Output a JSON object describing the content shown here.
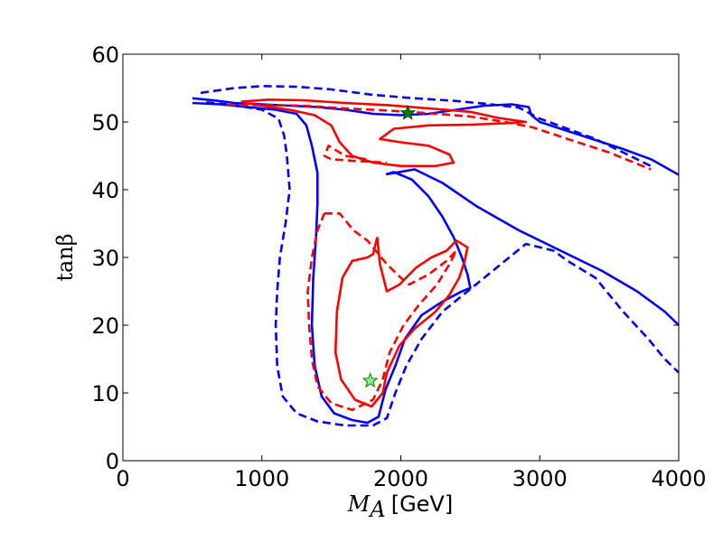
{
  "chart_data": {
    "type": "line",
    "title": "",
    "xlabel_symbol": "M",
    "xlabel_subscript": "A",
    "xlabel_unit": "[GeV]",
    "ylabel": "tanβ",
    "xlim": [
      0,
      4000
    ],
    "ylim": [
      0,
      60
    ],
    "grid": false,
    "xticks": [
      0,
      1000,
      2000,
      3000,
      4000
    ],
    "yticks": [
      0,
      10,
      20,
      30,
      40,
      50,
      60
    ],
    "series": [
      {
        "name": "blue-solid-upper",
        "color": "#0000ff",
        "dashed": false,
        "points": [
          [
            500,
            53.5
          ],
          [
            650,
            53.2
          ],
          [
            800,
            52.8
          ],
          [
            1000,
            52.6
          ],
          [
            1200,
            52.4
          ],
          [
            1400,
            52.2
          ],
          [
            1600,
            51.8
          ],
          [
            1800,
            51.2
          ],
          [
            2000,
            51.0
          ],
          [
            2200,
            51.2
          ],
          [
            2400,
            51.8
          ],
          [
            2600,
            52.4
          ],
          [
            2800,
            52.6
          ],
          [
            2920,
            52.2
          ],
          [
            2940,
            51.0
          ],
          [
            3000,
            50.0
          ],
          [
            3300,
            48.0
          ],
          [
            3600,
            46.0
          ],
          [
            3800,
            44.5
          ],
          [
            4000,
            42.2
          ]
        ]
      },
      {
        "name": "blue-solid-main",
        "color": "#0000ff",
        "dashed": false,
        "points": [
          [
            500,
            52.8
          ],
          [
            700,
            52.6
          ],
          [
            900,
            52.2
          ],
          [
            1100,
            51.8
          ],
          [
            1250,
            51.2
          ],
          [
            1320,
            49.5
          ],
          [
            1360,
            46.5
          ],
          [
            1400,
            42.5
          ],
          [
            1400,
            38.0
          ],
          [
            1390,
            33.0
          ],
          [
            1370,
            27.0
          ],
          [
            1360,
            20.0
          ],
          [
            1380,
            14.0
          ],
          [
            1430,
            9.5
          ],
          [
            1520,
            7.0
          ],
          [
            1650,
            6.0
          ],
          [
            1760,
            5.6
          ],
          [
            1840,
            6.5
          ],
          [
            1890,
            10.5
          ],
          [
            1960,
            14.0
          ],
          [
            2030,
            18.0
          ],
          [
            2150,
            21.5
          ],
          [
            2300,
            23.5
          ],
          [
            2440,
            25.0
          ],
          [
            2500,
            25.5
          ],
          [
            2480,
            27.5
          ],
          [
            2440,
            30.0
          ],
          [
            2380,
            33.0
          ],
          [
            2300,
            36.0
          ],
          [
            2200,
            39.0
          ],
          [
            2080,
            41.5
          ],
          [
            1950,
            42.6
          ],
          [
            1900,
            42.3
          ],
          [
            2100,
            43.0
          ],
          [
            2300,
            41.0
          ],
          [
            2550,
            37.5
          ],
          [
            2850,
            34.0
          ],
          [
            3150,
            31.0
          ],
          [
            3450,
            28.0
          ],
          [
            3700,
            25.0
          ],
          [
            3900,
            22.0
          ],
          [
            4000,
            20.0
          ]
        ]
      },
      {
        "name": "blue-dashed-upper",
        "color": "#0000ff",
        "dashed": true,
        "points": [
          [
            560,
            54.3
          ],
          [
            800,
            55.0
          ],
          [
            1000,
            55.3
          ],
          [
            1250,
            55.2
          ],
          [
            1500,
            54.8
          ],
          [
            1800,
            54.0
          ],
          [
            2100,
            53.5
          ],
          [
            2400,
            53.1
          ],
          [
            2650,
            52.6
          ],
          [
            2850,
            52.1
          ],
          [
            3000,
            50.5
          ],
          [
            3400,
            47.5
          ],
          [
            3800,
            43.5
          ]
        ]
      },
      {
        "name": "blue-dashed-main",
        "color": "#0000ff",
        "dashed": true,
        "points": [
          [
            600,
            52.9
          ],
          [
            800,
            52.5
          ],
          [
            1000,
            51.8
          ],
          [
            1120,
            50.5
          ],
          [
            1160,
            48.0
          ],
          [
            1180,
            45.0
          ],
          [
            1200,
            40.0
          ],
          [
            1170,
            35.0
          ],
          [
            1130,
            30.0
          ],
          [
            1110,
            25.0
          ],
          [
            1100,
            20.0
          ],
          [
            1110,
            14.0
          ],
          [
            1150,
            9.5
          ],
          [
            1250,
            7.0
          ],
          [
            1400,
            5.8
          ],
          [
            1600,
            5.2
          ],
          [
            1800,
            5.2
          ],
          [
            1900,
            6.3
          ],
          [
            1960,
            10.0
          ],
          [
            2040,
            14.0
          ],
          [
            2150,
            18.0
          ],
          [
            2300,
            22.0
          ],
          [
            2480,
            25.0
          ],
          [
            2600,
            27.0
          ],
          [
            2780,
            30.0
          ],
          [
            2900,
            32.0
          ],
          [
            3100,
            31.0
          ],
          [
            3200,
            29.5
          ],
          [
            3400,
            27.0
          ],
          [
            3600,
            22.0
          ],
          [
            3780,
            18.0
          ],
          [
            3900,
            15.0
          ],
          [
            4000,
            13.0
          ]
        ]
      },
      {
        "name": "red-solid-upper",
        "color": "#ff0000",
        "dashed": false,
        "points": [
          [
            850,
            53.0
          ],
          [
            1050,
            53.3
          ],
          [
            1300,
            53.2
          ],
          [
            1600,
            52.8
          ],
          [
            1900,
            52.5
          ],
          [
            2200,
            52.0
          ],
          [
            2500,
            51.5
          ],
          [
            2700,
            50.6
          ],
          [
            2900,
            50.0
          ],
          [
            2750,
            49.8
          ],
          [
            2500,
            49.6
          ],
          [
            2200,
            49.5
          ],
          [
            1950,
            49.0
          ],
          [
            1850,
            47.5
          ],
          [
            2000,
            47.0
          ],
          [
            2200,
            46.5
          ],
          [
            2350,
            45.2
          ],
          [
            2380,
            44.0
          ],
          [
            2250,
            43.5
          ],
          [
            2000,
            43.5
          ],
          [
            1800,
            44.0
          ],
          [
            1650,
            45.0
          ],
          [
            1560,
            47.0
          ],
          [
            1500,
            49.5
          ],
          [
            1380,
            51.0
          ],
          [
            1200,
            51.8
          ],
          [
            1000,
            52.4
          ],
          [
            850,
            53.0
          ]
        ]
      },
      {
        "name": "red-solid-lower",
        "color": "#ff0000",
        "dashed": false,
        "points": [
          [
            1830,
            33.0
          ],
          [
            1800,
            30.5
          ],
          [
            1760,
            30.0
          ],
          [
            1650,
            29.5
          ],
          [
            1580,
            27.0
          ],
          [
            1540,
            22.0
          ],
          [
            1530,
            16.0
          ],
          [
            1570,
            12.0
          ],
          [
            1670,
            9.0
          ],
          [
            1790,
            8.0
          ],
          [
            1870,
            10.0
          ],
          [
            1900,
            13.0
          ],
          [
            1990,
            17.0
          ],
          [
            2100,
            19.5
          ],
          [
            2250,
            22.0
          ],
          [
            2350,
            24.5
          ],
          [
            2420,
            27.0
          ],
          [
            2460,
            29.5
          ],
          [
            2480,
            31.5
          ],
          [
            2400,
            32.5
          ],
          [
            2330,
            31.0
          ],
          [
            2220,
            30.0
          ],
          [
            2110,
            28.5
          ],
          [
            1990,
            26.0
          ],
          [
            1900,
            25.0
          ],
          [
            1850,
            29.0
          ],
          [
            1830,
            33.0
          ]
        ]
      },
      {
        "name": "red-dashed-upper",
        "color": "#ff0000",
        "dashed": true,
        "points": [
          [
            750,
            52.5
          ],
          [
            1000,
            52.5
          ],
          [
            1300,
            52.4
          ],
          [
            1600,
            52.0
          ],
          [
            1900,
            51.7
          ],
          [
            2200,
            51.3
          ],
          [
            2500,
            50.8
          ],
          [
            2750,
            50.0
          ],
          [
            2950,
            49.2
          ],
          [
            3200,
            47.5
          ],
          [
            3500,
            45.5
          ],
          [
            3800,
            43.0
          ]
        ]
      },
      {
        "name": "red-dashed-lower",
        "color": "#ff0000",
        "dashed": true,
        "points": [
          [
            1750,
            44.5
          ],
          [
            1600,
            45.0
          ],
          [
            1480,
            46.5
          ],
          [
            1450,
            45.0
          ],
          [
            1500,
            44.5
          ],
          [
            1700,
            44.2
          ],
          [
            1900,
            44.0
          ]
        ]
      },
      {
        "name": "red-dashed-inner",
        "color": "#ff0000",
        "dashed": true,
        "points": [
          [
            1450,
            36.5
          ],
          [
            1560,
            36.5
          ],
          [
            1660,
            34.0
          ],
          [
            1760,
            32.5
          ],
          [
            1900,
            29.0
          ],
          [
            2000,
            27.0
          ],
          [
            2060,
            26.0
          ],
          [
            2200,
            27.5
          ],
          [
            2330,
            29.5
          ],
          [
            2400,
            31.0
          ],
          [
            2350,
            29.0
          ],
          [
            2260,
            26.0
          ],
          [
            2130,
            23.0
          ],
          [
            2020,
            20.0
          ],
          [
            1920,
            16.0
          ],
          [
            1870,
            12.0
          ],
          [
            1800,
            9.0
          ],
          [
            1650,
            7.5
          ],
          [
            1500,
            8.5
          ],
          [
            1400,
            11.0
          ],
          [
            1360,
            15.0
          ],
          [
            1340,
            20.0
          ],
          [
            1330,
            25.0
          ],
          [
            1360,
            30.0
          ],
          [
            1400,
            34.0
          ],
          [
            1450,
            36.5
          ]
        ]
      }
    ],
    "markers": [
      {
        "name": "best-fit-star-filled",
        "x": 2050,
        "y": 51.3,
        "fill": "#008000",
        "stroke": "#004400"
      },
      {
        "name": "best-fit-star-open",
        "x": 1780,
        "y": 11.8,
        "fill": "#90ee90",
        "stroke": "#008000"
      }
    ]
  }
}
